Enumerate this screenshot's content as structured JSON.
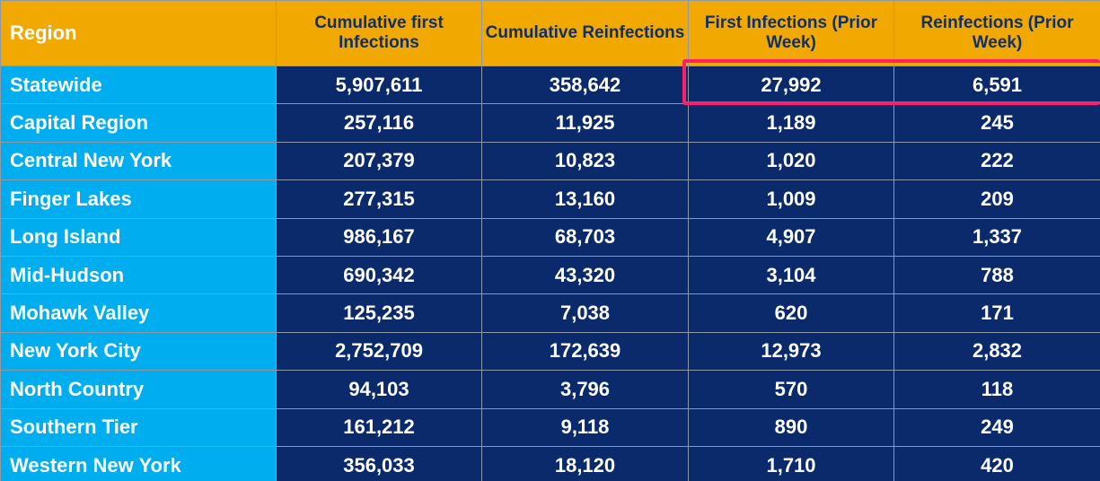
{
  "chart_data": {
    "type": "table",
    "title": "",
    "columns": [
      "Region",
      "Cumulative first Infections",
      "Cumulative Reinfections",
      "First Infections (Prior Week)",
      "Reinfections (Prior Week)"
    ],
    "rows": [
      {
        "region": "Statewide",
        "values": [
          "5,907,611",
          "358,642",
          "27,992",
          "6,591"
        ]
      },
      {
        "region": "Capital Region",
        "values": [
          "257,116",
          "11,925",
          "1,189",
          "245"
        ]
      },
      {
        "region": "Central New York",
        "values": [
          "207,379",
          "10,823",
          "1,020",
          "222"
        ]
      },
      {
        "region": "Finger Lakes",
        "values": [
          "277,315",
          "13,160",
          "1,009",
          "209"
        ]
      },
      {
        "region": "Long Island",
        "values": [
          "986,167",
          "68,703",
          "4,907",
          "1,337"
        ]
      },
      {
        "region": "Mid-Hudson",
        "values": [
          "690,342",
          "43,320",
          "3,104",
          "788"
        ]
      },
      {
        "region": "Mohawk Valley",
        "values": [
          "125,235",
          "7,038",
          "620",
          "171"
        ]
      },
      {
        "region": "New York City",
        "values": [
          "2,752,709",
          "172,639",
          "12,973",
          "2,832"
        ]
      },
      {
        "region": "North Country",
        "values": [
          "94,103",
          "3,796",
          "570",
          "118"
        ]
      },
      {
        "region": "Southern Tier",
        "values": [
          "161,212",
          "9,118",
          "890",
          "249"
        ]
      },
      {
        "region": "Western New York",
        "values": [
          "356,033",
          "18,120",
          "1,710",
          "420"
        ]
      }
    ],
    "highlight": {
      "row": "Statewide",
      "columns": [
        "First Infections (Prior Week)",
        "Reinfections (Prior Week)"
      ]
    }
  },
  "colors": {
    "header_bg": "#f1a800",
    "header_text": "#0f2f6a",
    "region_bg": "#00aeef",
    "value_bg": "#0b2a6b",
    "highlight_border": "#ff1f6a"
  }
}
